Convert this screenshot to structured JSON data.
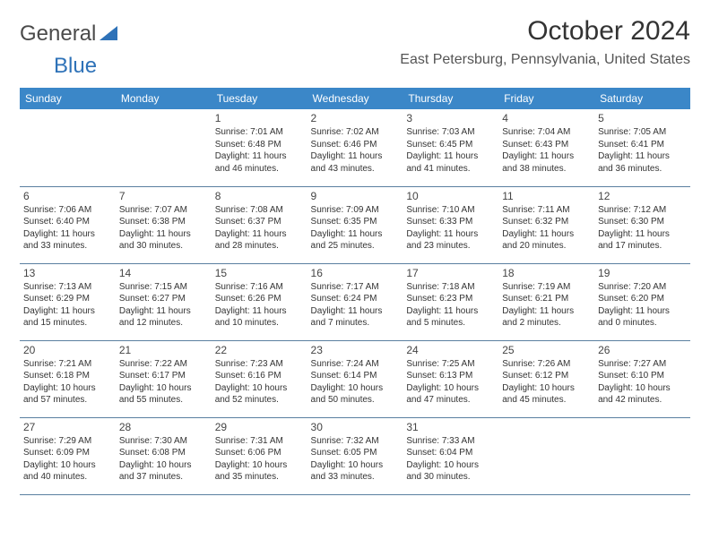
{
  "logo": {
    "text1": "General",
    "text2": "Blue"
  },
  "title": "October 2024",
  "location": "East Petersburg, Pennsylvania, United States",
  "colors": {
    "header_bg": "#3b87c8",
    "header_text": "#ffffff",
    "rule": "#5a7fa0",
    "accent": "#2e72b8"
  },
  "daynames": [
    "Sunday",
    "Monday",
    "Tuesday",
    "Wednesday",
    "Thursday",
    "Friday",
    "Saturday"
  ],
  "weeks": [
    [
      null,
      null,
      {
        "n": "1",
        "sr": "Sunrise: 7:01 AM",
        "ss": "Sunset: 6:48 PM",
        "dl1": "Daylight: 11 hours",
        "dl2": "and 46 minutes."
      },
      {
        "n": "2",
        "sr": "Sunrise: 7:02 AM",
        "ss": "Sunset: 6:46 PM",
        "dl1": "Daylight: 11 hours",
        "dl2": "and 43 minutes."
      },
      {
        "n": "3",
        "sr": "Sunrise: 7:03 AM",
        "ss": "Sunset: 6:45 PM",
        "dl1": "Daylight: 11 hours",
        "dl2": "and 41 minutes."
      },
      {
        "n": "4",
        "sr": "Sunrise: 7:04 AM",
        "ss": "Sunset: 6:43 PM",
        "dl1": "Daylight: 11 hours",
        "dl2": "and 38 minutes."
      },
      {
        "n": "5",
        "sr": "Sunrise: 7:05 AM",
        "ss": "Sunset: 6:41 PM",
        "dl1": "Daylight: 11 hours",
        "dl2": "and 36 minutes."
      }
    ],
    [
      {
        "n": "6",
        "sr": "Sunrise: 7:06 AM",
        "ss": "Sunset: 6:40 PM",
        "dl1": "Daylight: 11 hours",
        "dl2": "and 33 minutes."
      },
      {
        "n": "7",
        "sr": "Sunrise: 7:07 AM",
        "ss": "Sunset: 6:38 PM",
        "dl1": "Daylight: 11 hours",
        "dl2": "and 30 minutes."
      },
      {
        "n": "8",
        "sr": "Sunrise: 7:08 AM",
        "ss": "Sunset: 6:37 PM",
        "dl1": "Daylight: 11 hours",
        "dl2": "and 28 minutes."
      },
      {
        "n": "9",
        "sr": "Sunrise: 7:09 AM",
        "ss": "Sunset: 6:35 PM",
        "dl1": "Daylight: 11 hours",
        "dl2": "and 25 minutes."
      },
      {
        "n": "10",
        "sr": "Sunrise: 7:10 AM",
        "ss": "Sunset: 6:33 PM",
        "dl1": "Daylight: 11 hours",
        "dl2": "and 23 minutes."
      },
      {
        "n": "11",
        "sr": "Sunrise: 7:11 AM",
        "ss": "Sunset: 6:32 PM",
        "dl1": "Daylight: 11 hours",
        "dl2": "and 20 minutes."
      },
      {
        "n": "12",
        "sr": "Sunrise: 7:12 AM",
        "ss": "Sunset: 6:30 PM",
        "dl1": "Daylight: 11 hours",
        "dl2": "and 17 minutes."
      }
    ],
    [
      {
        "n": "13",
        "sr": "Sunrise: 7:13 AM",
        "ss": "Sunset: 6:29 PM",
        "dl1": "Daylight: 11 hours",
        "dl2": "and 15 minutes."
      },
      {
        "n": "14",
        "sr": "Sunrise: 7:15 AM",
        "ss": "Sunset: 6:27 PM",
        "dl1": "Daylight: 11 hours",
        "dl2": "and 12 minutes."
      },
      {
        "n": "15",
        "sr": "Sunrise: 7:16 AM",
        "ss": "Sunset: 6:26 PM",
        "dl1": "Daylight: 11 hours",
        "dl2": "and 10 minutes."
      },
      {
        "n": "16",
        "sr": "Sunrise: 7:17 AM",
        "ss": "Sunset: 6:24 PM",
        "dl1": "Daylight: 11 hours",
        "dl2": "and 7 minutes."
      },
      {
        "n": "17",
        "sr": "Sunrise: 7:18 AM",
        "ss": "Sunset: 6:23 PM",
        "dl1": "Daylight: 11 hours",
        "dl2": "and 5 minutes."
      },
      {
        "n": "18",
        "sr": "Sunrise: 7:19 AM",
        "ss": "Sunset: 6:21 PM",
        "dl1": "Daylight: 11 hours",
        "dl2": "and 2 minutes."
      },
      {
        "n": "19",
        "sr": "Sunrise: 7:20 AM",
        "ss": "Sunset: 6:20 PM",
        "dl1": "Daylight: 11 hours",
        "dl2": "and 0 minutes."
      }
    ],
    [
      {
        "n": "20",
        "sr": "Sunrise: 7:21 AM",
        "ss": "Sunset: 6:18 PM",
        "dl1": "Daylight: 10 hours",
        "dl2": "and 57 minutes."
      },
      {
        "n": "21",
        "sr": "Sunrise: 7:22 AM",
        "ss": "Sunset: 6:17 PM",
        "dl1": "Daylight: 10 hours",
        "dl2": "and 55 minutes."
      },
      {
        "n": "22",
        "sr": "Sunrise: 7:23 AM",
        "ss": "Sunset: 6:16 PM",
        "dl1": "Daylight: 10 hours",
        "dl2": "and 52 minutes."
      },
      {
        "n": "23",
        "sr": "Sunrise: 7:24 AM",
        "ss": "Sunset: 6:14 PM",
        "dl1": "Daylight: 10 hours",
        "dl2": "and 50 minutes."
      },
      {
        "n": "24",
        "sr": "Sunrise: 7:25 AM",
        "ss": "Sunset: 6:13 PM",
        "dl1": "Daylight: 10 hours",
        "dl2": "and 47 minutes."
      },
      {
        "n": "25",
        "sr": "Sunrise: 7:26 AM",
        "ss": "Sunset: 6:12 PM",
        "dl1": "Daylight: 10 hours",
        "dl2": "and 45 minutes."
      },
      {
        "n": "26",
        "sr": "Sunrise: 7:27 AM",
        "ss": "Sunset: 6:10 PM",
        "dl1": "Daylight: 10 hours",
        "dl2": "and 42 minutes."
      }
    ],
    [
      {
        "n": "27",
        "sr": "Sunrise: 7:29 AM",
        "ss": "Sunset: 6:09 PM",
        "dl1": "Daylight: 10 hours",
        "dl2": "and 40 minutes."
      },
      {
        "n": "28",
        "sr": "Sunrise: 7:30 AM",
        "ss": "Sunset: 6:08 PM",
        "dl1": "Daylight: 10 hours",
        "dl2": "and 37 minutes."
      },
      {
        "n": "29",
        "sr": "Sunrise: 7:31 AM",
        "ss": "Sunset: 6:06 PM",
        "dl1": "Daylight: 10 hours",
        "dl2": "and 35 minutes."
      },
      {
        "n": "30",
        "sr": "Sunrise: 7:32 AM",
        "ss": "Sunset: 6:05 PM",
        "dl1": "Daylight: 10 hours",
        "dl2": "and 33 minutes."
      },
      {
        "n": "31",
        "sr": "Sunrise: 7:33 AM",
        "ss": "Sunset: 6:04 PM",
        "dl1": "Daylight: 10 hours",
        "dl2": "and 30 minutes."
      },
      null,
      null
    ]
  ]
}
